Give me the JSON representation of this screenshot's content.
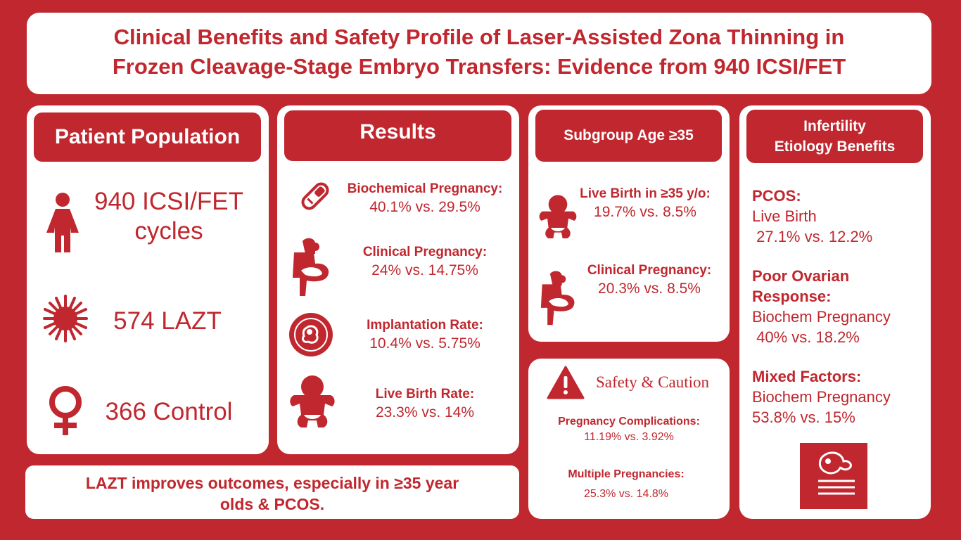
{
  "title": {
    "line1": "Clinical Benefits and Safety Profile of Laser-Assisted Zona Thinning in",
    "line2": "Frozen Cleavage-Stage Embryo Transfers: Evidence from 940 ICSI/FET"
  },
  "population": {
    "header": "Patient Population",
    "items": [
      {
        "icon": "woman-icon",
        "line1": "940 ICSI/FET",
        "line2": "cycles"
      },
      {
        "icon": "laser-burst-icon",
        "line1": "574 LAZT"
      },
      {
        "icon": "female-symbol-icon",
        "line1": "366 Control"
      }
    ]
  },
  "results": {
    "header": "Results",
    "items": [
      {
        "icon": "pregnancy-test-icon",
        "label": "Biochemical Pregnancy:",
        "value": "40.1% vs. 29.5%"
      },
      {
        "icon": "pregnant-woman-icon",
        "label": "Clinical Pregnancy:",
        "value": "24% vs. 14.75%"
      },
      {
        "icon": "embryo-icon",
        "label": "Implantation Rate:",
        "value": "10.4% vs. 5.75%"
      },
      {
        "icon": "baby-icon",
        "label": "Live Birth Rate:",
        "value": "23.3% vs. 14%"
      }
    ]
  },
  "subgroup": {
    "header": "Subgroup Age ≥35",
    "items": [
      {
        "icon": "baby-icon",
        "label": "Live Birth in ≥35 y/o:",
        "value": "19.7% vs. 8.5%"
      },
      {
        "icon": "pregnant-woman-icon",
        "label": "Clinical Pregnancy:",
        "value": "20.3% vs. 8.5%"
      }
    ]
  },
  "safety": {
    "header": "Safety & Caution",
    "icon": "warning-icon",
    "items": [
      {
        "label": "Pregnancy Complications:",
        "value": "11.19% vs. 3.92%"
      },
      {
        "label": "Multiple Pregnancies:",
        "value": "25.3% vs. 14.8%"
      }
    ]
  },
  "etiology": {
    "header_line1": "Infertility",
    "header_line2": "Etiology Benefits",
    "items": [
      {
        "label": "PCOS:",
        "sub": "Live Birth",
        "value": " 27.1% vs. 12.2%"
      },
      {
        "label_line1": "Poor Ovarian",
        "label_line2": "Response:",
        "sub": "Biochem Pregnancy",
        "value": " 40% vs. 18.2%"
      },
      {
        "label": "Mixed Factors:",
        "sub": "Biochem Pregnancy",
        "value": "53.8% vs. 15%"
      }
    ],
    "bottom_icon": "embryo-report-icon"
  },
  "conclusion": {
    "line1": "LAZT improves outcomes, especially in ≥35 year",
    "line2": "olds & PCOS."
  },
  "colors": {
    "brand_red": "#c0272e",
    "panel": "#ffffff"
  }
}
